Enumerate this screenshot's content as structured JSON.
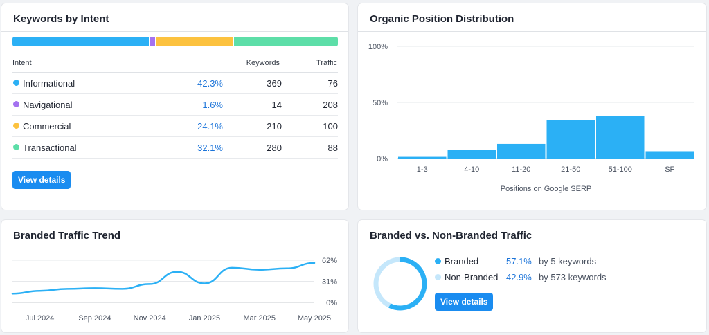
{
  "intent": {
    "title": "Keywords by Intent",
    "headers": {
      "intent": "Intent",
      "keywords": "Keywords",
      "traffic": "Traffic"
    },
    "rows": [
      {
        "name": "Informational",
        "percent": "42.3%",
        "share": 42.3,
        "keywords": "369",
        "traffic": "76",
        "color": "#2bb0f5"
      },
      {
        "name": "Navigational",
        "percent": "1.6%",
        "share": 1.6,
        "keywords": "14",
        "traffic": "208",
        "color": "#a472f0"
      },
      {
        "name": "Commercial",
        "percent": "24.1%",
        "share": 24.1,
        "keywords": "210",
        "traffic": "100",
        "color": "#fcc23f"
      },
      {
        "name": "Transactional",
        "percent": "32.1%",
        "share": 32.1,
        "keywords": "280",
        "traffic": "88",
        "color": "#5ddea8"
      }
    ],
    "button": "View details"
  },
  "organic": {
    "title": "Organic Position Distribution",
    "chart_data": {
      "type": "bar",
      "title": "Organic Position Distribution",
      "categories": [
        "1-3",
        "4-10",
        "11-20",
        "21-50",
        "51-100",
        "SF"
      ],
      "values": [
        1.5,
        7.5,
        13,
        34,
        38,
        6.5
      ],
      "xlabel": "Positions on Google SERP",
      "ylabel": "",
      "ylim": [
        0,
        100
      ],
      "yticks": [
        "100%",
        "50%",
        "0%"
      ],
      "grid": true,
      "color": "#2bb0f5"
    }
  },
  "trend": {
    "title": "Branded Traffic Trend",
    "chart_data": {
      "type": "line",
      "title": "Branded Traffic Trend",
      "x": [
        "Jun 2024",
        "Jul 2024",
        "Aug 2024",
        "Sep 2024",
        "Oct 2024",
        "Nov 2024",
        "Dec 2024",
        "Jan 2025",
        "Feb 2025",
        "Mar 2025",
        "Apr 2025",
        "May 2025"
      ],
      "xticks": [
        "Jul 2024",
        "Sep 2024",
        "Nov 2024",
        "Jan 2025",
        "Mar 2025",
        "May 2025"
      ],
      "series": [
        {
          "values": [
            13,
            17,
            20,
            21,
            20,
            27,
            45,
            28,
            51,
            48,
            50,
            58
          ]
        }
      ],
      "yticks": [
        "62%",
        "31%",
        "0%"
      ],
      "ylim": [
        0,
        62
      ],
      "grid": true,
      "color": "#2bb0f5"
    }
  },
  "bvn": {
    "title": "Branded vs. Non-Branded Traffic",
    "branded": {
      "label": "Branded",
      "percent": "57.1%",
      "share": 57.1,
      "detail": "by 5 keywords",
      "color": "#2bb0f5"
    },
    "nonbranded": {
      "label": "Non-Branded",
      "percent": "42.9%",
      "share": 42.9,
      "detail": "by 573 keywords",
      "color": "#c5e7fb"
    },
    "button": "View details"
  }
}
